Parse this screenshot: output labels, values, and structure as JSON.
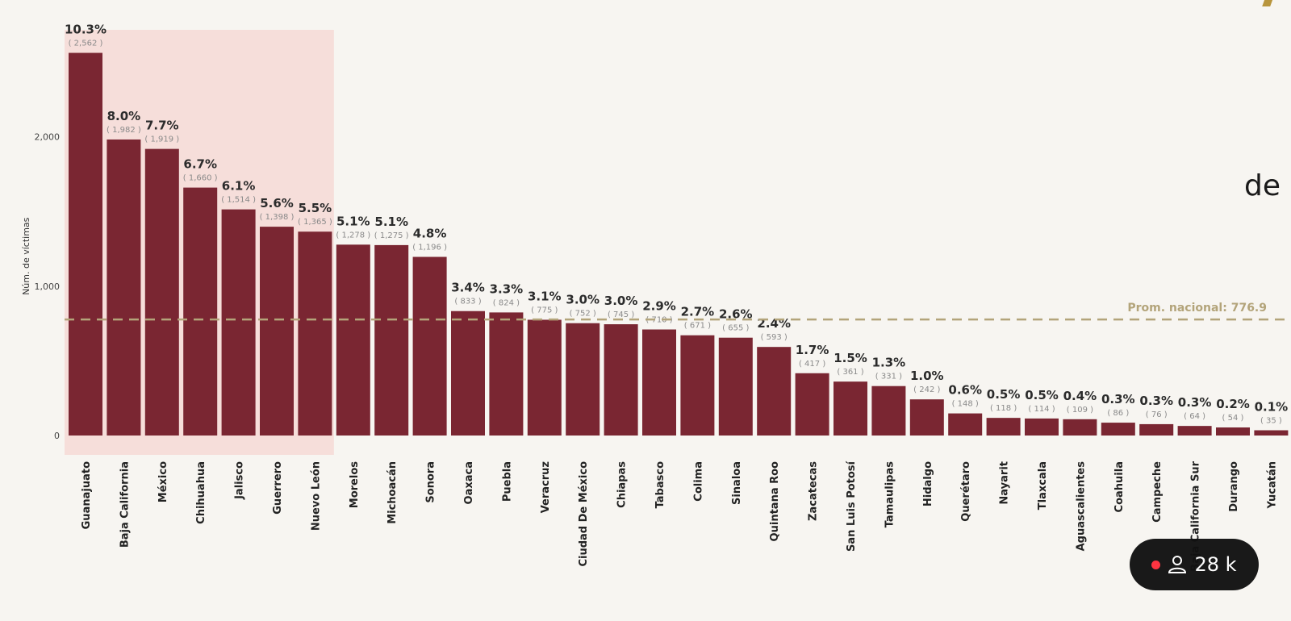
{
  "chart_data": {
    "type": "bar",
    "ylabel": "Núm. de víctimas",
    "ylim": [
      0,
      2700
    ],
    "yticks": [
      0,
      1000,
      2000
    ],
    "ytick_labels": [
      "0",
      "1,000",
      "2,000"
    ],
    "categories": [
      "Guanajuato",
      "Baja California",
      "México",
      "Chihuahua",
      "Jalisco",
      "Guerrero",
      "Nuevo León",
      "Morelos",
      "Michoacán",
      "Sonora",
      "Oaxaca",
      "Puebla",
      "Veracruz",
      "Ciudad De México",
      "Chiapas",
      "Tabasco",
      "Colima",
      "Sinaloa",
      "Quintana Roo",
      "Zacatecas",
      "San Luis Potosí",
      "Tamaulipas",
      "Hidalgo",
      "Querétaro",
      "Nayarit",
      "Tlaxcala",
      "Aguascalientes",
      "Coahuila",
      "Campeche",
      "Baja California Sur",
      "Durango",
      "Yucatán"
    ],
    "values": [
      2562,
      1982,
      1919,
      1660,
      1514,
      1398,
      1365,
      1278,
      1275,
      1196,
      833,
      824,
      775,
      752,
      745,
      710,
      671,
      655,
      593,
      417,
      361,
      331,
      242,
      148,
      118,
      114,
      109,
      86,
      76,
      64,
      54,
      35
    ],
    "percent_labels": [
      "10.3%",
      "8.0%",
      "7.7%",
      "6.7%",
      "6.1%",
      "5.6%",
      "5.5%",
      "5.1%",
      "5.1%",
      "4.8%",
      "3.4%",
      "3.3%",
      "3.1%",
      "3.0%",
      "3.0%",
      "2.9%",
      "2.7%",
      "2.6%",
      "2.4%",
      "1.7%",
      "1.5%",
      "1.3%",
      "1.0%",
      "0.6%",
      "0.5%",
      "0.5%",
      "0.4%",
      "0.3%",
      "0.3%",
      "0.3%",
      "0.2%",
      "0.1%"
    ],
    "count_labels": [
      "( 2,562 )",
      "( 1,982 )",
      "( 1,919 )",
      "( 1,660 )",
      "( 1,514 )",
      "( 1,398 )",
      "( 1,365 )",
      "( 1,278 )",
      "( 1,275 )",
      "( 1,196 )",
      "( 833 )",
      "( 824 )",
      "( 775 )",
      "( 752 )",
      "( 745 )",
      "( 710 )",
      "( 671 )",
      "( 655 )",
      "( 593 )",
      "( 417 )",
      "( 361 )",
      "( 331 )",
      "( 242 )",
      "( 148 )",
      "( 118 )",
      "( 114 )",
      "( 109 )",
      "( 86 )",
      "( 76 )",
      "( 64 )",
      "( 54 )",
      "( 35 )"
    ],
    "highlighted_count": 7,
    "reference_line": {
      "label": "Prom. nacional: 776.9",
      "value": 776.9
    },
    "grid": false
  },
  "colors": {
    "bar": "#7a2632",
    "highlight": "#f6d9d6",
    "avg_line": "#b3a47a",
    "background": "#f7f5f1"
  },
  "overlay": {
    "side_text": "de",
    "viewer_count": "28 k",
    "viewer_icon": "person-icon",
    "live_icon": "live-dot-icon"
  }
}
